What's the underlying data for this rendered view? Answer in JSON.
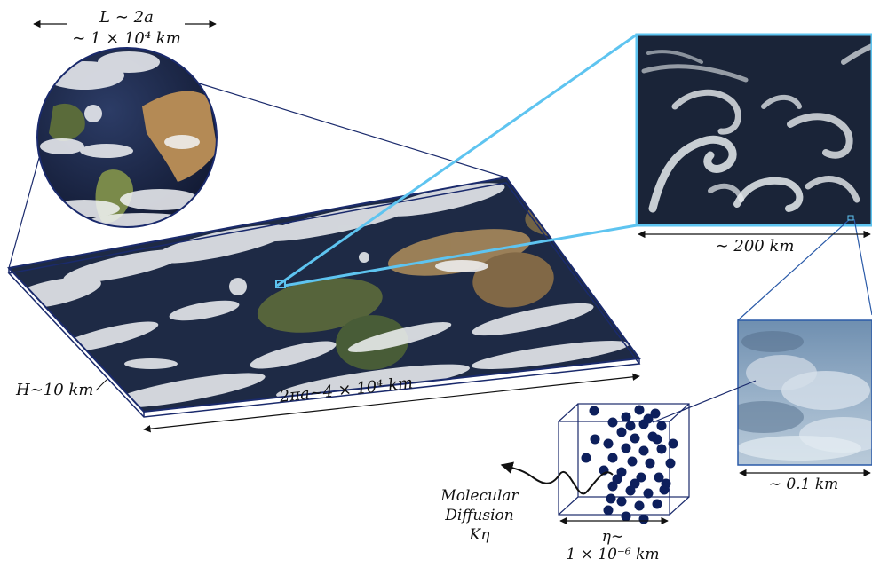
{
  "labels": {
    "globe_size": "L ∼ 2a",
    "globe_size_km": "∼ 1 × 10⁴ km",
    "map_width": "2πa∼4 × 10⁴ km",
    "depth": "H∼10 km",
    "mesoscale_width": "∼ 200 km",
    "cloud_width": "∼ 0.1 km",
    "kolmogorov_eta": "η∼",
    "kolmogorov_km": "1 × 10⁻⁶ km",
    "diffusion_line1": "Molecular",
    "diffusion_line2": "Diffusion",
    "diffusion_symbol": "Kη"
  },
  "images": {
    "globe": "earth-globe",
    "world_map": "global-cloud-map",
    "eddies": "satellite-cloud-eddies",
    "cloud_photo": "cloud-photograph"
  },
  "colors": {
    "outline": "#1a2a6c",
    "zoom_light": "#5ec4f0",
    "particle": "#0d1f5c",
    "ocean": "#1e2a45",
    "cloud": "#f2f4f6",
    "sky": "#8ea9c4"
  }
}
